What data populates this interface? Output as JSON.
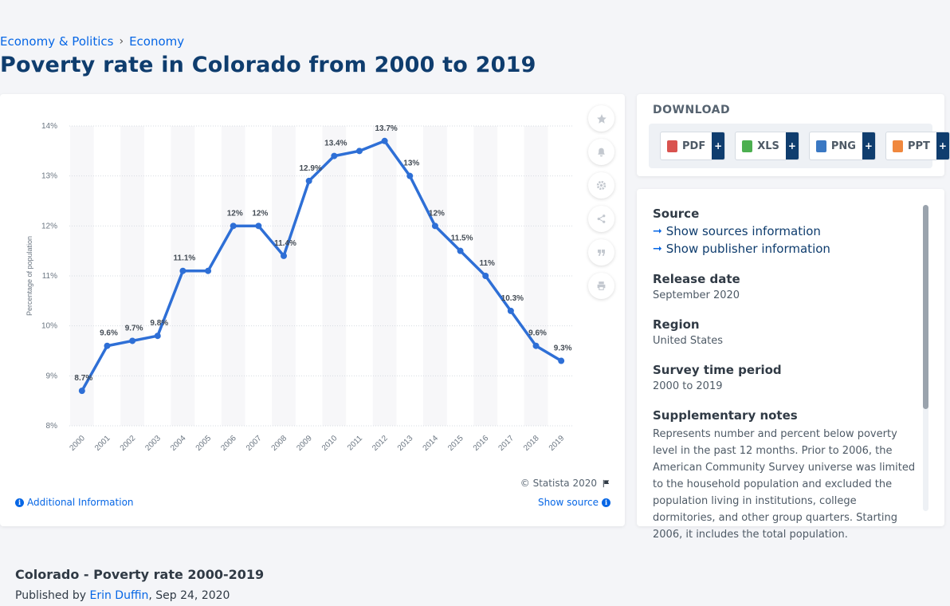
{
  "breadcrumb": {
    "items": [
      "Economy & Politics",
      "Economy"
    ],
    "separator": "›"
  },
  "page_title": "Poverty rate in Colorado from 2000 to 2019",
  "chart_data": {
    "type": "line",
    "title": "",
    "xlabel": "",
    "ylabel": "Percentage of population",
    "x": [
      "2000",
      "2001",
      "2002",
      "2003",
      "2004",
      "2005",
      "2006",
      "2007",
      "2008",
      "2009",
      "2010",
      "2011",
      "2012",
      "2013",
      "2014",
      "2015",
      "2016",
      "2017",
      "2018",
      "2019"
    ],
    "series": [
      {
        "values": [
          8.7,
          9.6,
          9.7,
          9.8,
          11.1,
          11.1,
          12,
          12,
          11.4,
          12.9,
          13.4,
          13.5,
          13.7,
          13,
          12,
          11.5,
          11,
          10.3,
          9.6,
          9.3
        ],
        "color": "#2e6fd6"
      }
    ],
    "labels": [
      "8.7%",
      "9.6%",
      "9.7%",
      "9.8%",
      "11.1%",
      "",
      "12%",
      "12%",
      "11.4%",
      "12.9%",
      "13.4%",
      "",
      "13.7%",
      "13%",
      "12%",
      "11.5%",
      "11%",
      "10.3%",
      "9.6%",
      "9.3%"
    ],
    "ylim": [
      8,
      14
    ],
    "yticks": [
      8,
      9,
      10,
      11,
      12,
      13,
      14
    ],
    "ytick_labels": [
      "8%",
      "9%",
      "10%",
      "11%",
      "12%",
      "13%",
      "14%"
    ],
    "grid": true,
    "legend": "none"
  },
  "chart_footer": {
    "copyright": "© Statista 2020",
    "additional_info": "Additional Information",
    "show_source": "Show source"
  },
  "tools": [
    "favorite-icon",
    "notification-icon",
    "settings-icon",
    "share-icon",
    "cite-icon",
    "print-icon"
  ],
  "download": {
    "title": "DOWNLOAD",
    "buttons": [
      {
        "label": "PDF",
        "color": "#d9534f"
      },
      {
        "label": "XLS",
        "color": "#4caf50"
      },
      {
        "label": "PNG",
        "color": "#3a78c3"
      },
      {
        "label": "PPT",
        "color": "#f0883e"
      }
    ],
    "plus": "+"
  },
  "info": {
    "source_label": "Source",
    "show_sources": "Show sources information",
    "show_publisher": "Show publisher information",
    "release_label": "Release date",
    "release_value": "September 2020",
    "region_label": "Region",
    "region_value": "United States",
    "survey_label": "Survey time period",
    "survey_value": "2000 to 2019",
    "notes_label": "Supplementary notes",
    "notes_value": "Represents number and percent below poverty level in the past 12 months. Prior to 2006, the American Community Survey universe was limited to the household population and excluded the population living in institutions, college dormitories, and other group quarters. Starting 2006, it includes the total population."
  },
  "footer": {
    "title": "Colorado - Poverty rate 2000-2019",
    "published_by": "Published by",
    "author": "Erin Duffin",
    "date": ", Sep 24, 2020"
  }
}
